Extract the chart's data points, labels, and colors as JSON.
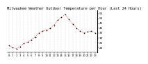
{
  "title": "Milwaukee Weather Outdoor Temperature per Hour (Last 24 Hours)",
  "x_values": [
    0,
    1,
    2,
    3,
    4,
    5,
    6,
    7,
    8,
    9,
    10,
    11,
    12,
    13,
    14,
    15,
    16,
    17,
    18,
    19,
    20,
    21,
    22,
    23
  ],
  "y_values": [
    22,
    20,
    19,
    21,
    24,
    26,
    28,
    31,
    35,
    37,
    38,
    40,
    43,
    48,
    51,
    54,
    49,
    44,
    40,
    37,
    35,
    36,
    37,
    35
  ],
  "line_color": "#cc0000",
  "marker_color": "#000000",
  "background_color": "#ffffff",
  "grid_color": "#888888",
  "ylim": [
    15,
    58
  ],
  "ytick_values": [
    20,
    25,
    30,
    35,
    40,
    45,
    50,
    55
  ],
  "ylabel_fontsize": 3.0,
  "xlabel_fontsize": 2.8,
  "title_fontsize": 3.8,
  "title_color": "#000000"
}
